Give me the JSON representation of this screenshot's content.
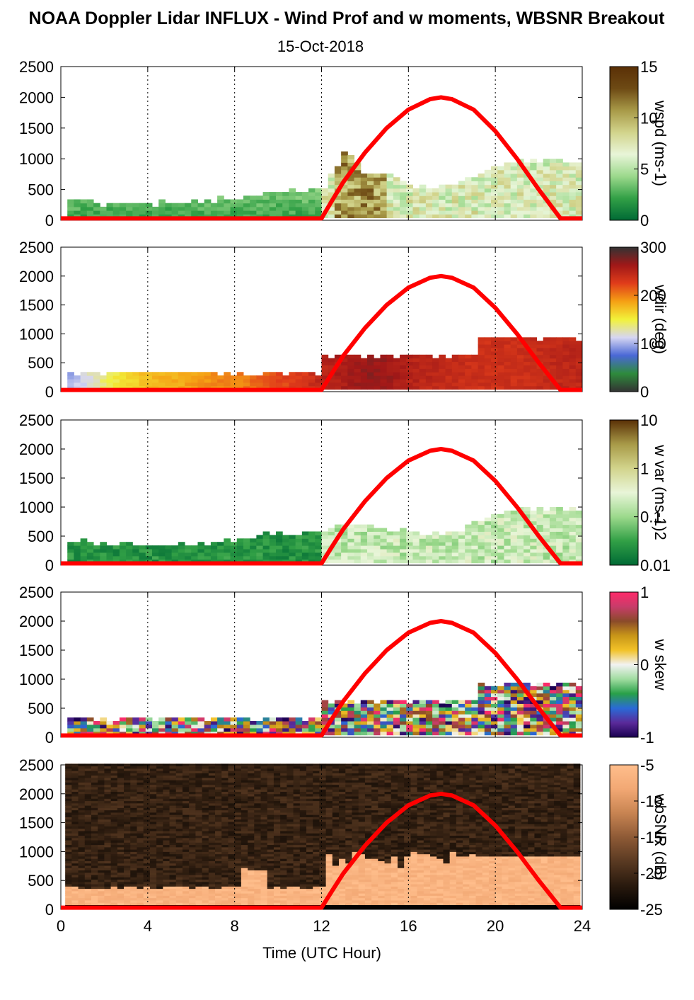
{
  "title": "NOAA Doppler Lidar INFLUX - Wind Prof and w moments, WBSNR Breakout",
  "subtitle": "15-Oct-2018",
  "chart_data": {
    "type": "heatmap",
    "xlabel": "Time (UTC Hour)",
    "xlim": [
      0,
      24
    ],
    "xticks": [
      0,
      4,
      8,
      12,
      16,
      20,
      24
    ],
    "xtick_labels": [
      "0",
      "4",
      "8",
      "12",
      "16",
      "20",
      "24"
    ],
    "ylim": [
      0,
      2500
    ],
    "yticks": [
      0,
      500,
      1000,
      1500,
      2000,
      2500
    ],
    "ytick_labels": [
      "0",
      "500",
      "1000",
      "1500",
      "2000",
      "2500"
    ],
    "grid": "dotted vertical lines at x ticks",
    "overlay_curve": {
      "color": "#ff0000",
      "x": [
        0,
        12,
        12.5,
        13,
        14,
        15,
        16,
        17,
        17.5,
        18,
        19,
        20,
        21,
        22,
        23,
        23.2,
        24
      ],
      "y": [
        30,
        30,
        330,
        620,
        1100,
        1500,
        1800,
        1970,
        2000,
        1970,
        1800,
        1450,
        1000,
        500,
        30,
        30,
        30
      ]
    },
    "panels": [
      {
        "id": "wspd",
        "colorbar_label": "wspd (ms-1)",
        "colorbar_ticks": [
          "0",
          "5",
          "10",
          "15"
        ],
        "colorbar_colors": [
          "#006a35",
          "#32a046",
          "#9cd98c",
          "#e8f5d8",
          "#d2d48c",
          "#a89a48",
          "#6e4a14",
          "#5a3006"
        ],
        "approx_top_height": [
          [
            0,
            300
          ],
          [
            1,
            270
          ],
          [
            2,
            250
          ],
          [
            3,
            250
          ],
          [
            4,
            250
          ],
          [
            5,
            250
          ],
          [
            6,
            280
          ],
          [
            7,
            300
          ],
          [
            8,
            330
          ],
          [
            9,
            380
          ],
          [
            10,
            450
          ],
          [
            11,
            480
          ],
          [
            12,
            500
          ],
          [
            13,
            1100
          ],
          [
            14,
            700
          ],
          [
            15,
            700
          ],
          [
            16,
            550
          ],
          [
            17,
            500
          ],
          [
            18,
            550
          ],
          [
            19,
            700
          ],
          [
            20,
            900
          ],
          [
            21,
            950
          ],
          [
            22,
            950
          ],
          [
            23,
            950
          ]
        ]
      },
      {
        "id": "wdir",
        "colorbar_label": "wdir (deg)",
        "colorbar_ticks": [
          "0",
          "100",
          "200",
          "300"
        ],
        "colorbar_colors": [
          "#333333",
          "#2e8b3c",
          "#4a68d6",
          "#d6d6f2",
          "#f2f23a",
          "#f5a014",
          "#e03c1a",
          "#a01818",
          "#333333"
        ],
        "approx_direction_deg": [
          [
            0,
            110
          ],
          [
            1,
            140
          ],
          [
            2,
            170
          ],
          [
            3,
            195
          ],
          [
            4,
            210
          ],
          [
            5,
            215
          ],
          [
            6,
            225
          ],
          [
            7,
            235
          ],
          [
            8,
            240
          ],
          [
            9,
            250
          ],
          [
            10,
            265
          ],
          [
            11,
            275
          ],
          [
            12,
            300
          ],
          [
            13,
            310
          ],
          [
            14,
            320
          ],
          [
            15,
            315
          ],
          [
            16,
            300
          ],
          [
            17,
            295
          ],
          [
            18,
            290
          ],
          [
            19,
            285
          ],
          [
            20,
            285
          ],
          [
            21,
            285
          ],
          [
            22,
            290
          ],
          [
            23,
            295
          ]
        ]
      },
      {
        "id": "wvar",
        "colorbar_label": "w var (ms-1)2",
        "colorbar_ticks": [
          "0.01",
          "0.1",
          "1",
          "10"
        ],
        "colorbar_colors": [
          "#006a35",
          "#32a046",
          "#9cd98c",
          "#e8f5d8",
          "#d2d48c",
          "#a89a48",
          "#5a3006"
        ],
        "approx_top_height": [
          [
            0,
            400
          ],
          [
            2,
            330
          ],
          [
            4,
            300
          ],
          [
            6,
            330
          ],
          [
            8,
            400
          ],
          [
            9,
            500
          ],
          [
            10,
            500
          ],
          [
            11,
            500
          ],
          [
            12,
            550
          ],
          [
            13,
            700
          ],
          [
            14,
            650
          ],
          [
            15,
            600
          ],
          [
            16,
            550
          ],
          [
            17,
            500
          ],
          [
            18,
            550
          ],
          [
            19,
            700
          ],
          [
            20,
            900
          ],
          [
            21,
            950
          ],
          [
            22,
            950
          ],
          [
            23,
            950
          ]
        ]
      },
      {
        "id": "wskew",
        "colorbar_label": "w skew",
        "colorbar_ticks": [
          "-1",
          "0",
          "1"
        ],
        "colorbar_colors": [
          "#1a0050",
          "#5a2a9a",
          "#2a6ad6",
          "#28a048",
          "#a0dca0",
          "#f2f2f2",
          "#f2c228",
          "#c89618",
          "#8a4a2a",
          "#c83c6a",
          "#ff2a6a"
        ]
      },
      {
        "id": "wbsnr",
        "colorbar_label": "wbSNR (dB)",
        "colorbar_ticks": [
          "-25",
          "-20",
          "-15",
          "-10",
          "-5"
        ],
        "colorbar_colors": [
          "#000000",
          "#2a1a0e",
          "#5a3a22",
          "#8e5a36",
          "#c88452",
          "#f2a874",
          "#ffbe8c"
        ]
      }
    ]
  }
}
